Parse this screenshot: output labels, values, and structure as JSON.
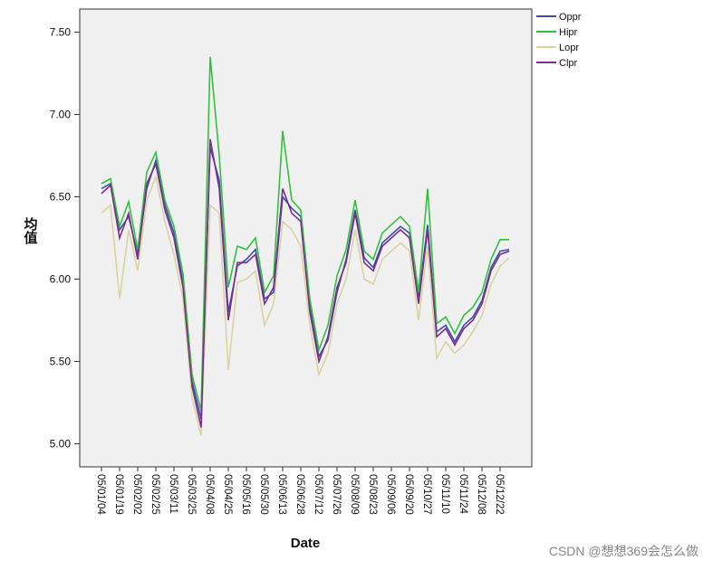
{
  "chart_data": {
    "type": "line",
    "x_label": "Date",
    "y_label": "均值",
    "watermark": "CSDN @想想369会怎么做",
    "categories": [
      "05/01/04",
      null,
      "05/01/19",
      null,
      "05/02/02",
      null,
      "05/02/25",
      null,
      "05/03/11",
      null,
      "05/03/25",
      null,
      "05/04/08",
      null,
      "05/04/25",
      null,
      "05/05/16",
      null,
      "05/05/30",
      null,
      "05/06/13",
      null,
      "05/06/28",
      null,
      "05/07/12",
      null,
      "05/07/26",
      null,
      "05/08/09",
      null,
      "05/08/23",
      null,
      "05/09/06",
      null,
      "05/09/20",
      null,
      "05/10/27",
      null,
      "05/11/10",
      null,
      "05/11/24",
      null,
      "05/12/08",
      null,
      "05/12/22",
      null
    ],
    "series": [
      {
        "name": "Oppr",
        "color": "#3c4fa8",
        "values": [
          6.55,
          6.58,
          6.3,
          6.38,
          6.15,
          6.55,
          6.72,
          6.45,
          6.28,
          5.98,
          5.38,
          5.15,
          6.8,
          6.6,
          5.8,
          6.08,
          6.12,
          6.18,
          5.88,
          5.92,
          6.5,
          6.43,
          6.38,
          5.83,
          5.53,
          5.63,
          5.92,
          6.12,
          6.42,
          6.13,
          6.07,
          6.22,
          6.27,
          6.32,
          6.28,
          5.88,
          6.33,
          5.68,
          5.72,
          5.62,
          5.72,
          5.77,
          5.87,
          6.07,
          6.17,
          6.18
        ]
      },
      {
        "name": "Hipr",
        "color": "#33c040",
        "values": [
          6.58,
          6.61,
          6.32,
          6.47,
          6.18,
          6.65,
          6.77,
          6.48,
          6.32,
          6.03,
          5.42,
          5.2,
          7.35,
          6.75,
          5.95,
          6.2,
          6.18,
          6.25,
          5.92,
          6.02,
          6.9,
          6.48,
          6.42,
          5.88,
          5.57,
          5.72,
          6.02,
          6.18,
          6.48,
          6.17,
          6.12,
          6.28,
          6.33,
          6.38,
          6.32,
          5.92,
          6.55,
          5.73,
          5.77,
          5.67,
          5.78,
          5.83,
          5.92,
          6.12,
          6.24,
          6.24
        ]
      },
      {
        "name": "Lopr",
        "color": "#d8d3a0",
        "values": [
          6.4,
          6.45,
          5.88,
          6.3,
          6.05,
          6.48,
          6.62,
          6.35,
          6.15,
          5.88,
          5.28,
          5.05,
          6.45,
          6.4,
          5.45,
          5.98,
          6.0,
          6.05,
          5.72,
          5.85,
          6.35,
          6.3,
          6.2,
          5.72,
          5.42,
          5.55,
          5.85,
          6.0,
          6.3,
          6.0,
          5.97,
          6.12,
          6.17,
          6.22,
          6.17,
          5.75,
          6.2,
          5.52,
          5.62,
          5.55,
          5.6,
          5.68,
          5.78,
          5.97,
          6.08,
          6.13
        ]
      },
      {
        "name": "Clpr",
        "color": "#7b2d8e",
        "values": [
          6.52,
          6.57,
          6.25,
          6.4,
          6.12,
          6.58,
          6.7,
          6.42,
          6.25,
          5.95,
          5.35,
          5.1,
          6.85,
          6.55,
          5.75,
          6.1,
          6.1,
          6.15,
          5.85,
          5.95,
          6.55,
          6.4,
          6.35,
          5.8,
          5.5,
          5.65,
          5.95,
          6.1,
          6.4,
          6.1,
          6.05,
          6.2,
          6.25,
          6.3,
          6.25,
          5.85,
          6.3,
          5.65,
          5.7,
          5.6,
          5.7,
          5.75,
          5.85,
          6.05,
          6.15,
          6.17
        ]
      }
    ],
    "ylim": [
      4.86,
      7.64
    ],
    "yticks": [
      {
        "value": 5,
        "label": "5.00"
      },
      {
        "value": 5.5,
        "label": "5.50"
      },
      {
        "value": 6,
        "label": "6.00"
      },
      {
        "value": 6.5,
        "label": "6.50"
      },
      {
        "value": 7,
        "label": "7.00"
      },
      {
        "value": 7.5,
        "label": "7.50"
      }
    ],
    "legend": "right"
  }
}
